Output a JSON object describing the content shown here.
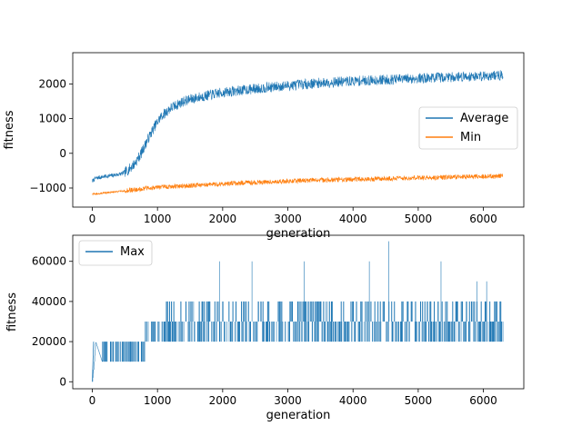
{
  "chart_data": [
    {
      "type": "line",
      "xlabel": "generation",
      "ylabel": "fitness",
      "xlim": [
        -300,
        6620
      ],
      "ylim": [
        -1550,
        2900
      ],
      "xticks": [
        0,
        1000,
        2000,
        3000,
        4000,
        5000,
        6000
      ],
      "yticks": [
        -1000,
        0,
        1000,
        2000
      ],
      "grid": false,
      "legend_position": "center-right",
      "series": [
        {
          "name": "Average",
          "color": "#1f77b4",
          "noise": 150,
          "x": [
            0,
            50,
            150,
            300,
            450,
            550,
            650,
            750,
            850,
            950,
            1050,
            1200,
            1400,
            1600,
            1800,
            2000,
            2300,
            2600,
            3000,
            3500,
            4000,
            4500,
            5000,
            5500,
            6000,
            6300
          ],
          "values": [
            -800,
            -720,
            -680,
            -640,
            -590,
            -480,
            -300,
            0,
            400,
            750,
            1050,
            1300,
            1500,
            1600,
            1680,
            1750,
            1820,
            1880,
            1950,
            2030,
            2080,
            2120,
            2160,
            2200,
            2230,
            2250
          ]
        },
        {
          "name": "Min",
          "color": "#ff7f0e",
          "noise": 70,
          "x": [
            0,
            300,
            600,
            900,
            1200,
            1500,
            2000,
            2500,
            3000,
            3500,
            4000,
            4500,
            5000,
            5500,
            6000,
            6300
          ],
          "values": [
            -1180,
            -1120,
            -1060,
            -990,
            -960,
            -930,
            -880,
            -840,
            -800,
            -770,
            -750,
            -730,
            -710,
            -690,
            -670,
            -650
          ]
        }
      ]
    },
    {
      "type": "line",
      "xlabel": "generation",
      "ylabel": "fitness",
      "xlim": [
        -300,
        6620
      ],
      "ylim": [
        -3500,
        73000
      ],
      "xticks": [
        0,
        1000,
        2000,
        3000,
        4000,
        5000,
        6000
      ],
      "yticks": [
        0,
        20000,
        40000,
        60000
      ],
      "grid": false,
      "legend_position": "upper-left",
      "series": [
        {
          "name": "Max",
          "color": "#1f77b4",
          "x": [
            0,
            30,
            50,
            150,
            800,
            900,
            1000,
            1500,
            2000,
            3000,
            4000,
            4500,
            5000,
            6000,
            6300
          ],
          "values": [
            0,
            10000,
            20000,
            10000,
            10000,
            20000,
            20000,
            30000,
            30000,
            30000,
            30000,
            40000,
            30000,
            30000,
            30000
          ],
          "spikes": [
            {
              "x": 1950,
              "value": 60000
            },
            {
              "x": 2450,
              "value": 60000
            },
            {
              "x": 3250,
              "value": 60000
            },
            {
              "x": 4250,
              "value": 60000
            },
            {
              "x": 4550,
              "value": 70000
            },
            {
              "x": 5350,
              "value": 60000
            },
            {
              "x": 5900,
              "value": 50000
            },
            {
              "x": 6050,
              "value": 50000
            }
          ]
        }
      ]
    }
  ]
}
